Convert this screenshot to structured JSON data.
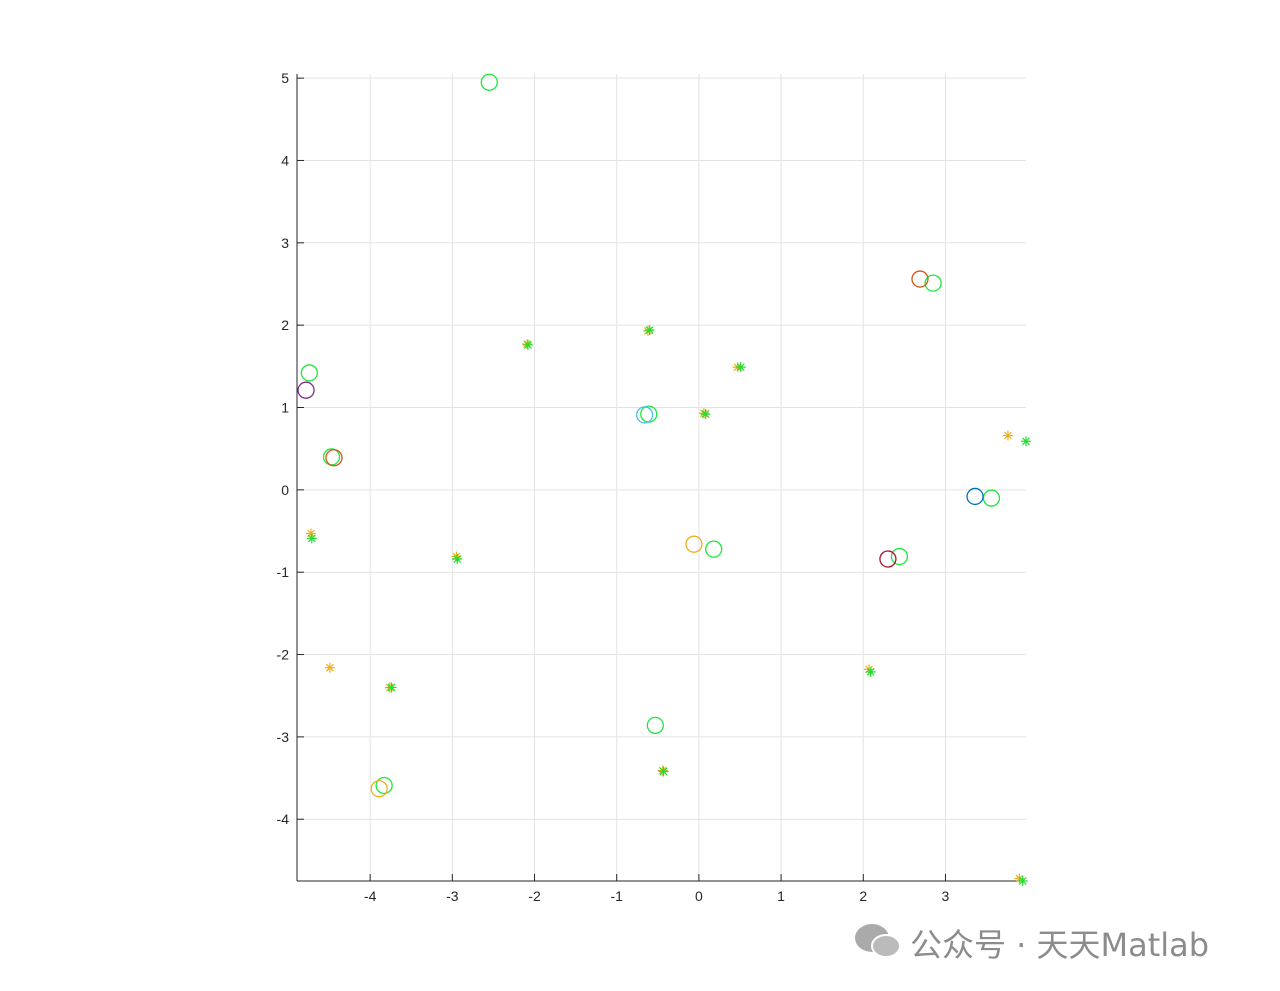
{
  "chart_data": {
    "type": "scatter",
    "xlim": [
      -4.89,
      3.98
    ],
    "ylim": [
      -4.75,
      5.05
    ],
    "xticks": [
      -4,
      -3,
      -2,
      -1,
      0,
      1,
      2,
      3
    ],
    "yticks": [
      -4,
      -3,
      -2,
      -1,
      0,
      1,
      2,
      3,
      4,
      5
    ],
    "grid": true,
    "series": [
      {
        "marker": "circle",
        "color": "#1ee83c",
        "x": [
          -2.55,
          2.85,
          -4.74,
          -0.61,
          -4.47,
          3.56,
          0.18,
          2.44,
          -0.53,
          -3.83
        ],
        "y": [
          4.95,
          2.51,
          1.42,
          0.92,
          0.4,
          -0.1,
          -0.72,
          -0.81,
          -2.86,
          -3.59
        ]
      },
      {
        "marker": "circle",
        "color": "#d95319",
        "x": [
          2.69,
          -4.44
        ],
        "y": [
          2.56,
          0.39
        ]
      },
      {
        "marker": "circle",
        "color": "#7e2f8e",
        "x": [
          -4.78
        ],
        "y": [
          1.21
        ]
      },
      {
        "marker": "circle",
        "color": "#4dbeee",
        "x": [
          -0.66
        ],
        "y": [
          0.91
        ]
      },
      {
        "marker": "circle",
        "color": "#0072bd",
        "x": [
          3.36
        ],
        "y": [
          -0.08
        ]
      },
      {
        "marker": "circle",
        "color": "#edb120",
        "x": [
          -0.06,
          -3.89
        ],
        "y": [
          -0.66,
          -3.63
        ]
      },
      {
        "marker": "circle",
        "color": "#a2142f",
        "x": [
          2.3
        ],
        "y": [
          -0.84
        ]
      },
      {
        "marker": "star",
        "color": "#edb120",
        "x": [
          -2.09,
          -0.62,
          0.47,
          3.76,
          -4.72,
          -2.95,
          -4.49,
          -3.76,
          2.07,
          -0.44,
          3.9,
          0.06
        ],
        "y": [
          1.77,
          1.93,
          1.49,
          0.66,
          -0.53,
          -0.81,
          -2.16,
          -2.4,
          -2.18,
          -3.41,
          -4.72,
          0.93
        ]
      },
      {
        "marker": "star",
        "color": "#22dd33",
        "x": [
          -2.08,
          -0.6,
          0.51,
          3.98,
          -4.71,
          -2.94,
          -3.74,
          2.09,
          -0.43,
          3.94,
          0.08
        ],
        "y": [
          1.76,
          1.94,
          1.49,
          0.59,
          -0.59,
          -0.84,
          -2.4,
          -2.21,
          -3.42,
          -4.75,
          0.92
        ]
      }
    ]
  },
  "watermark": "公众号 · 天天Matlab"
}
